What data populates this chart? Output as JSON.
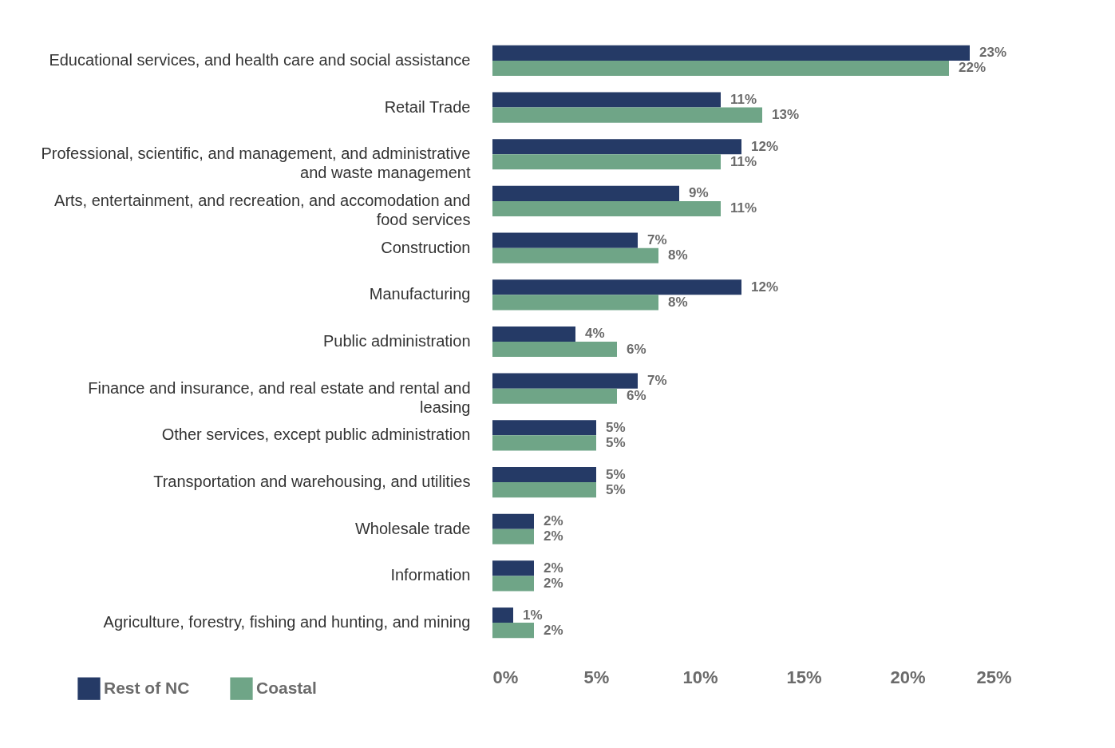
{
  "chart_data": {
    "type": "bar",
    "orientation": "horizontal",
    "categories": [
      "Educational services, and health care and social assistance",
      "Retail Trade",
      "Professional, scientific, and management, and administrative and waste management",
      "Arts, entertainment, and recreation, and accomodation and food services",
      "Construction",
      "Manufacturing",
      "Public administration",
      "Finance and insurance, and real estate and rental and leasing",
      "Other services, except public administration",
      "Transportation and warehousing, and utilities",
      "Wholesale trade",
      "Information",
      "Agriculture, forestry, fishing and hunting, and mining"
    ],
    "series": [
      {
        "name": "Rest of NC",
        "color": "#253a66",
        "values": [
          23,
          11,
          12,
          9,
          7,
          12,
          4,
          7,
          5,
          5,
          2,
          2,
          1
        ],
        "value_labels": [
          "23%",
          "11%",
          "12%",
          "9%",
          "7%",
          "12%",
          "4%",
          "7%",
          "5%",
          "5%",
          "2%",
          "2%",
          "1%"
        ]
      },
      {
        "name": "Coastal",
        "color": "#6fa587",
        "values": [
          22,
          13,
          11,
          11,
          8,
          8,
          6,
          6,
          5,
          5,
          2,
          2,
          2
        ],
        "value_labels": [
          "22%",
          "13%",
          "11%",
          "11%",
          "8%",
          "8%",
          "6%",
          "6%",
          "5%",
          "5%",
          "2%",
          "2%",
          "2%"
        ]
      }
    ],
    "xlim": [
      0,
      25
    ],
    "xticks": [
      {
        "value": 0,
        "label": "0%"
      },
      {
        "value": 5,
        "label": "5%"
      },
      {
        "value": 10,
        "label": "10%"
      },
      {
        "value": 15,
        "label": "15%"
      },
      {
        "value": 20,
        "label": "20%"
      },
      {
        "value": 25,
        "label": "25%"
      }
    ],
    "grid": false,
    "legend": "bottom left"
  }
}
